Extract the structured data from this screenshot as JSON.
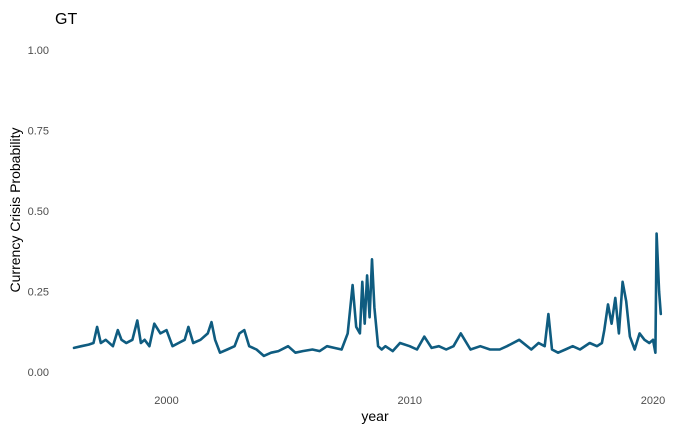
{
  "chart_data": {
    "type": "line",
    "title": "GT",
    "xlabel": "year",
    "ylabel": "Currency Crisis Probability",
    "xlim": [
      1995.5,
      2020.7
    ],
    "ylim": [
      0,
      1
    ],
    "x_ticks": [
      2000,
      2010,
      2020
    ],
    "x_tick_labels": [
      "2000",
      "2010",
      "2020"
    ],
    "y_ticks": [
      0,
      0.25,
      0.5,
      0.75,
      1
    ],
    "y_tick_labels": [
      "0.00",
      "0.25",
      "0.50",
      "0.75",
      "1.00"
    ],
    "grid": false,
    "legend": "none",
    "series": [
      {
        "color": "#0f5c80",
        "x": [
          1996.2,
          1996.5,
          1996.8,
          1997.0,
          1997.15,
          1997.3,
          1997.5,
          1997.8,
          1998.0,
          1998.15,
          1998.35,
          1998.6,
          1998.8,
          1998.95,
          1999.1,
          1999.3,
          1999.5,
          1999.75,
          2000.0,
          2000.25,
          2000.5,
          2000.75,
          2000.9,
          2001.1,
          2001.4,
          2001.7,
          2001.85,
          2002.0,
          2002.2,
          2002.5,
          2002.8,
          2003.0,
          2003.2,
          2003.4,
          2003.7,
          2004.0,
          2004.3,
          2004.6,
          2005.0,
          2005.3,
          2005.6,
          2006.0,
          2006.3,
          2006.6,
          2006.9,
          2007.2,
          2007.45,
          2007.65,
          2007.8,
          2007.95,
          2008.05,
          2008.15,
          2008.25,
          2008.35,
          2008.45,
          2008.55,
          2008.7,
          2008.85,
          2009.0,
          2009.3,
          2009.6,
          2010.0,
          2010.3,
          2010.6,
          2010.9,
          2011.2,
          2011.5,
          2011.8,
          2012.1,
          2012.5,
          2012.9,
          2013.3,
          2013.7,
          2014.0,
          2014.5,
          2015.0,
          2015.3,
          2015.55,
          2015.7,
          2015.85,
          2016.1,
          2016.4,
          2016.7,
          2017.0,
          2017.4,
          2017.7,
          2017.9,
          2018.0,
          2018.15,
          2018.3,
          2018.45,
          2018.6,
          2018.75,
          2018.9,
          2019.05,
          2019.25,
          2019.45,
          2019.65,
          2019.85,
          2020.0,
          2020.1,
          2020.15,
          2020.25,
          2020.32
        ],
        "y": [
          0.075,
          0.08,
          0.085,
          0.09,
          0.14,
          0.09,
          0.1,
          0.08,
          0.13,
          0.1,
          0.09,
          0.1,
          0.16,
          0.09,
          0.1,
          0.08,
          0.15,
          0.12,
          0.13,
          0.08,
          0.09,
          0.1,
          0.14,
          0.09,
          0.1,
          0.12,
          0.155,
          0.1,
          0.06,
          0.07,
          0.08,
          0.12,
          0.13,
          0.08,
          0.07,
          0.05,
          0.06,
          0.065,
          0.08,
          0.06,
          0.065,
          0.07,
          0.065,
          0.08,
          0.075,
          0.07,
          0.12,
          0.27,
          0.14,
          0.12,
          0.28,
          0.15,
          0.3,
          0.17,
          0.35,
          0.2,
          0.08,
          0.07,
          0.08,
          0.065,
          0.09,
          0.08,
          0.07,
          0.11,
          0.075,
          0.08,
          0.07,
          0.08,
          0.12,
          0.07,
          0.08,
          0.07,
          0.07,
          0.08,
          0.1,
          0.07,
          0.09,
          0.08,
          0.18,
          0.07,
          0.06,
          0.07,
          0.08,
          0.07,
          0.09,
          0.08,
          0.09,
          0.13,
          0.21,
          0.15,
          0.23,
          0.12,
          0.28,
          0.22,
          0.11,
          0.07,
          0.12,
          0.1,
          0.09,
          0.1,
          0.06,
          0.43,
          0.25,
          0.18
        ]
      }
    ]
  }
}
